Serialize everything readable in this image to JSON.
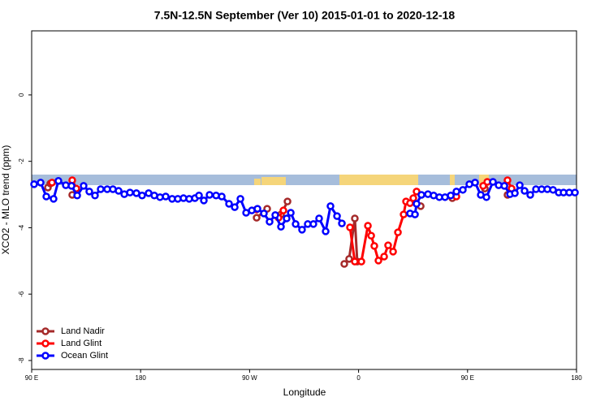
{
  "chart_data": {
    "type": "line",
    "title": "7.5N-12.5N September (Ver 10)   2015-01-01 to 2020-12-18",
    "x_label": "Longitude",
    "y_label": "XCO2 - MLO trend (ppm)",
    "xlim": [
      90,
      540
    ],
    "xticks": [
      {
        "value": 90,
        "label": "90 E"
      },
      {
        "value": 180,
        "label": "180"
      },
      {
        "value": 270,
        "label": "90 W"
      },
      {
        "value": 360,
        "label": "0"
      },
      {
        "value": 450,
        "label": "90 E"
      },
      {
        "value": 540,
        "label": "180"
      }
    ],
    "ylim": [
      -8.27,
      1.93
    ],
    "yticks": [
      0,
      -2,
      -4,
      -6,
      -8
    ],
    "legend": "bottom-left",
    "series": [
      {
        "name": "Land Nadir",
        "color": "#a52a2a",
        "x": [
          103.4,
          105.4,
          null,
          123.5,
          null,
          275.8,
          284.5,
          null,
          295.9,
          301.3,
          null,
          348.2,
          352.2,
          356.9,
          358.9,
          null,
          411.3,
          null,
          437.4,
          null,
          464.3,
          null,
          483.0
        ],
        "values": [
          -2.79,
          -2.67,
          null,
          -3.01,
          null,
          -3.7,
          -3.43,
          null,
          -3.6,
          -3.21,
          null,
          -5.09,
          -4.94,
          -3.72,
          -5.02,
          null,
          -3.35,
          null,
          -3.11,
          null,
          -2.82,
          null,
          -3.01
        ]
      },
      {
        "name": "Land Glint",
        "color": "#ff0000",
        "x": [
          106.8,
          null,
          123.5,
          126.9,
          null,
          275.8,
          null,
          293.9,
          297.9,
          null,
          352.9,
          356.9,
          362.3,
          367.7,
          370.4,
          373.0,
          376.4,
          381.1,
          384.4,
          388.5,
          392.5,
          397.2,
          399.2,
          402.5,
          405.2,
          407.9,
          null,
          440.8,
          null,
          462.9,
          466.3,
          null,
          483.0,
          486.4
        ],
        "values": [
          -2.64,
          null,
          -2.57,
          -2.82,
          null,
          -3.45,
          null,
          -3.7,
          -3.48,
          null,
          -3.99,
          -5.02,
          -5.02,
          -3.94,
          -4.24,
          -4.55,
          -4.99,
          -4.87,
          -4.53,
          -4.72,
          -4.14,
          -3.6,
          -3.21,
          -3.26,
          -3.11,
          -2.91,
          null,
          -3.06,
          null,
          -2.74,
          -2.62,
          null,
          -2.57,
          -2.82
        ]
      },
      {
        "name": "Ocean Glint",
        "color": "#0000ff",
        "x": [
          92.0,
          97.4,
          102.1,
          108.1,
          112.1,
          118.2,
          122.9,
          127.6,
          132.9,
          137.6,
          142.3,
          147.0,
          152.4,
          157.1,
          161.8,
          166.5,
          171.2,
          176.5,
          181.2,
          186.6,
          191.3,
          196.0,
          200.7,
          206.0,
          210.7,
          215.4,
          220.1,
          224.8,
          228.2,
          232.2,
          236.9,
          242.3,
          247.0,
          253.0,
          257.7,
          262.4,
          267.1,
          271.8,
          276.5,
          281.8,
          286.5,
          291.2,
          295.9,
          300.6,
          304.0,
          308.0,
          313.3,
          318.0,
          322.7,
          327.4,
          332.8,
          336.8,
          342.2,
          346.2,
          null,
          402.5,
          406.6,
          407.9,
          411.9,
          417.3,
          422.0,
          426.7,
          431.4,
          436.1,
          440.8,
          446.1,
          451.5,
          456.2,
          460.9,
          465.6,
          471.0,
          475.7,
          480.4,
          485.1,
          489.1,
          493.1,
          497.1,
          501.8,
          506.5,
          511.2,
          515.9,
          520.6,
          525.3,
          529.3,
          534.0,
          538.7
        ],
        "values": [
          -2.69,
          -2.64,
          -3.06,
          -3.13,
          -2.59,
          -2.72,
          -2.74,
          -3.03,
          -2.74,
          -2.91,
          -3.03,
          -2.84,
          -2.84,
          -2.84,
          -2.89,
          -2.99,
          -2.94,
          -2.96,
          -3.03,
          -2.96,
          -3.03,
          -3.08,
          -3.06,
          -3.13,
          -3.13,
          -3.11,
          -3.13,
          -3.11,
          -3.03,
          -3.18,
          -3.01,
          -3.03,
          -3.06,
          -3.28,
          -3.38,
          -3.13,
          -3.55,
          -3.48,
          -3.43,
          -3.57,
          -3.82,
          -3.62,
          -3.97,
          -3.72,
          -3.55,
          -3.89,
          -4.06,
          -3.89,
          -3.89,
          -3.72,
          -4.11,
          -3.35,
          -3.65,
          -3.87,
          null,
          -3.57,
          -3.6,
          -3.28,
          -3.01,
          -2.99,
          -3.03,
          -3.08,
          -3.08,
          -3.03,
          -2.91,
          -2.86,
          -2.69,
          -2.64,
          -3.01,
          -3.08,
          -2.62,
          -2.72,
          -2.74,
          -2.99,
          -2.96,
          -2.72,
          -2.89,
          -3.01,
          -2.84,
          -2.84,
          -2.84,
          -2.86,
          -2.94,
          -2.94,
          -2.94,
          -2.94
        ]
      }
    ]
  }
}
